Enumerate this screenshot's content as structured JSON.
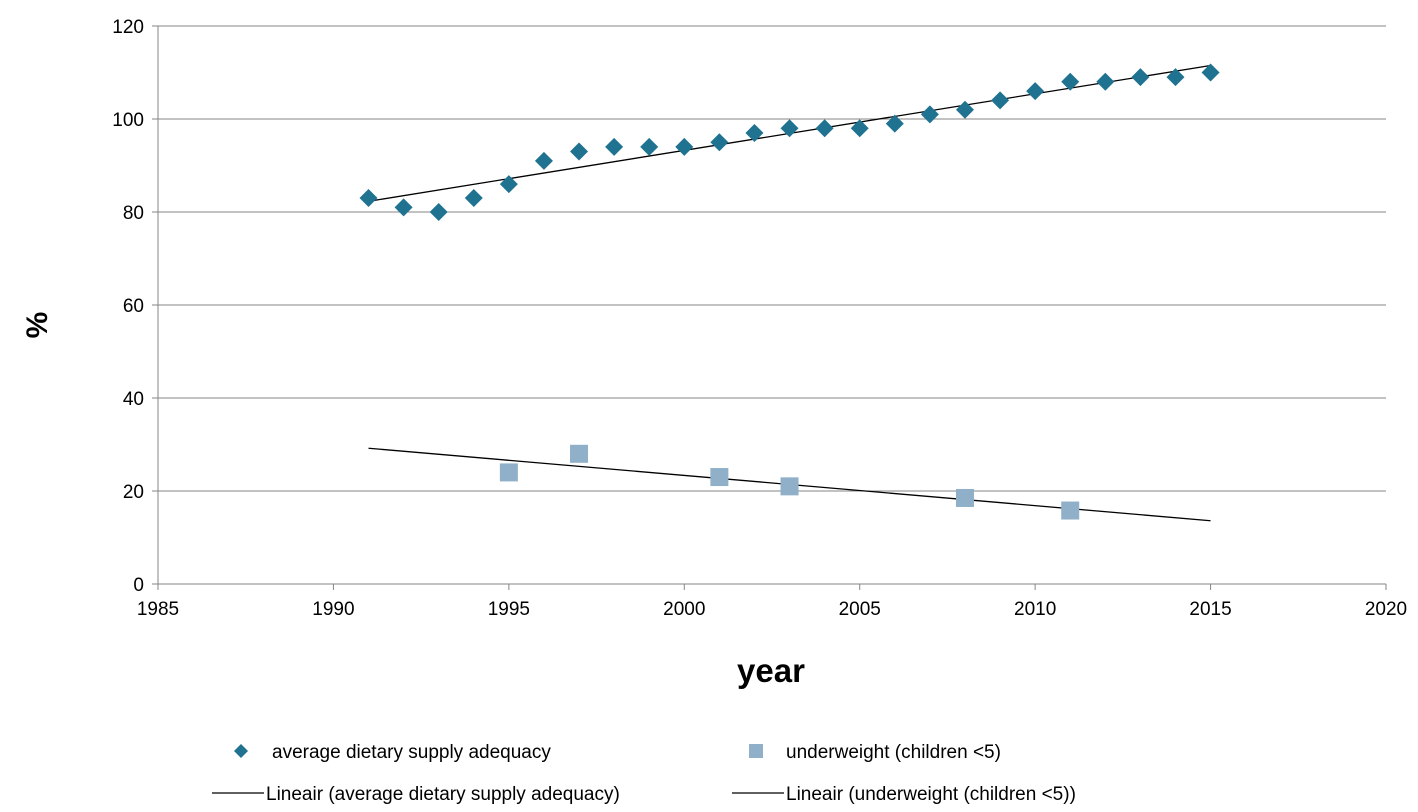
{
  "chart_data": {
    "type": "scatter",
    "title": "",
    "xlabel": "year",
    "ylabel": "%",
    "xlim": [
      1985,
      2020
    ],
    "ylim": [
      0,
      120
    ],
    "xticks": [
      1985,
      1990,
      1995,
      2000,
      2005,
      2010,
      2015,
      2020
    ],
    "yticks": [
      0,
      20,
      40,
      60,
      80,
      100,
      120
    ],
    "grid": "horizontal",
    "legend_position": "bottom",
    "series": [
      {
        "name": "average dietary supply adequacy",
        "marker": "diamond",
        "color": "#1f7391",
        "x": [
          1991,
          1992,
          1993,
          1994,
          1995,
          1996,
          1997,
          1998,
          1999,
          2000,
          2001,
          2002,
          2003,
          2004,
          2005,
          2006,
          2007,
          2008,
          2009,
          2010,
          2011,
          2012,
          2013,
          2014,
          2015
        ],
        "y": [
          83,
          81,
          80,
          83,
          86,
          91,
          93,
          94,
          94,
          94,
          95,
          97,
          98,
          98,
          98,
          99,
          101,
          102,
          104,
          106,
          108,
          108,
          109,
          109,
          110
        ]
      },
      {
        "name": "underweight (children <5)",
        "marker": "square",
        "color": "#8fb0c8",
        "x": [
          1995,
          1997,
          2001,
          2003,
          2008,
          2011
        ],
        "y": [
          24,
          28,
          23,
          21,
          18.5,
          15.8
        ]
      }
    ],
    "trendlines": [
      {
        "name": "Lineair (average dietary supply adequacy)",
        "color": "#000000",
        "x": [
          1991,
          2015
        ],
        "y": [
          82.3,
          111.5
        ]
      },
      {
        "name": "Lineair (underweight (children <5))",
        "color": "#000000",
        "x": [
          1991,
          2015
        ],
        "y": [
          29.2,
          13.6
        ]
      }
    ]
  }
}
